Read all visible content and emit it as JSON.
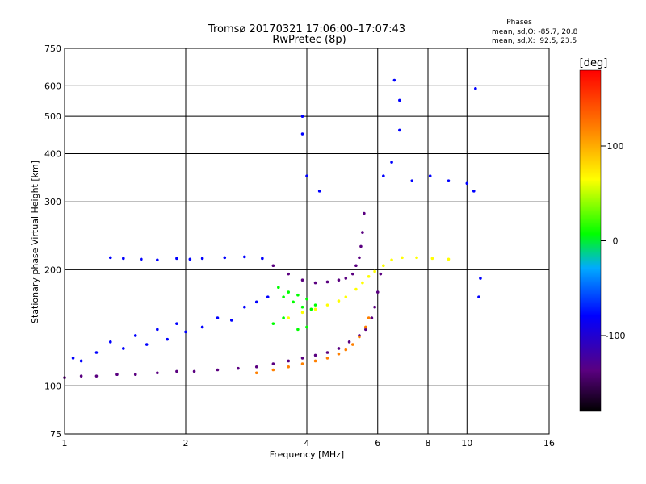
{
  "chart_data": {
    "type": "scatter",
    "title": "Tromsø 20170321 17:06:00–17:07:43",
    "subtitle": "RwPretec (8p)",
    "xlabel": "Frequency [MHz]",
    "ylabel": "Stationary phase Virtual Height [km]",
    "x_scale": "log",
    "y_scale": "log",
    "xlim": [
      1,
      16
    ],
    "ylim": [
      75,
      750
    ],
    "x_ticks": [
      1,
      2,
      4,
      6,
      8,
      10,
      16
    ],
    "y_ticks": [
      75,
      100,
      200,
      300,
      400,
      500,
      600,
      750
    ],
    "grid": true,
    "phase_info": {
      "header": "Phases",
      "line_o": "mean, sd,O: -85.7, 20.8",
      "line_x": "mean, sd,X:  92.5, 23.5"
    },
    "colorbar": {
      "label": "[deg]",
      "range": [
        -180,
        180
      ],
      "ticks": [
        100,
        0,
        -100
      ],
      "colors": [
        "#000000",
        "#5a0080",
        "#0000ff",
        "#00aaff",
        "#00ff00",
        "#ffff00",
        "#ff8000",
        "#ff0000"
      ]
    },
    "series": [
      {
        "trace": "O-mode lower trace",
        "phase_deg": -110,
        "points": [
          [
            1.0,
            105
          ],
          [
            1.1,
            106
          ],
          [
            1.2,
            106
          ],
          [
            1.35,
            107
          ],
          [
            1.5,
            107
          ],
          [
            1.7,
            108
          ],
          [
            1.9,
            109
          ],
          [
            2.1,
            109
          ],
          [
            2.4,
            110
          ],
          [
            2.7,
            111
          ],
          [
            3.0,
            112
          ],
          [
            3.3,
            114
          ],
          [
            3.6,
            116
          ],
          [
            3.9,
            118
          ],
          [
            4.2,
            120
          ],
          [
            4.5,
            122
          ],
          [
            4.8,
            125
          ],
          [
            5.1,
            130
          ],
          [
            5.4,
            135
          ],
          [
            5.6,
            140
          ],
          [
            5.8,
            150
          ],
          [
            5.9,
            160
          ],
          [
            6.0,
            175
          ],
          [
            6.1,
            195
          ]
        ]
      },
      {
        "trace": "F-region cusp near 5.5 MHz",
        "phase_deg": -110,
        "points": [
          [
            3.3,
            205
          ],
          [
            3.6,
            195
          ],
          [
            3.9,
            188
          ],
          [
            4.2,
            185
          ],
          [
            4.5,
            186
          ],
          [
            4.8,
            188
          ],
          [
            5.0,
            190
          ],
          [
            5.2,
            195
          ],
          [
            5.3,
            205
          ],
          [
            5.4,
            215
          ],
          [
            5.45,
            230
          ],
          [
            5.5,
            250
          ],
          [
            5.55,
            280
          ]
        ]
      },
      {
        "trace": "F-layer spread echoes",
        "phase_deg": -100,
        "points": [
          [
            1.3,
            215
          ],
          [
            1.4,
            214
          ],
          [
            1.55,
            213
          ],
          [
            1.7,
            212
          ],
          [
            1.9,
            214
          ],
          [
            2.05,
            213
          ],
          [
            2.2,
            214
          ],
          [
            2.5,
            215
          ],
          [
            2.8,
            216
          ],
          [
            3.1,
            214
          ]
        ]
      },
      {
        "trace": "X-mode lower trace",
        "phase_deg": 130,
        "points": [
          [
            3.0,
            108
          ],
          [
            3.3,
            110
          ],
          [
            3.6,
            112
          ],
          [
            3.9,
            114
          ],
          [
            4.2,
            116
          ],
          [
            4.5,
            118
          ],
          [
            4.8,
            121
          ],
          [
            5.0,
            124
          ],
          [
            5.2,
            128
          ],
          [
            5.4,
            134
          ],
          [
            5.6,
            142
          ],
          [
            5.7,
            150
          ]
        ]
      },
      {
        "trace": "X-mode upper trace",
        "phase_deg": 80,
        "points": [
          [
            3.6,
            150
          ],
          [
            3.9,
            155
          ],
          [
            4.2,
            158
          ],
          [
            4.5,
            162
          ],
          [
            4.8,
            166
          ],
          [
            5.0,
            170
          ],
          [
            5.3,
            178
          ],
          [
            5.5,
            185
          ],
          [
            5.7,
            192
          ],
          [
            5.9,
            198
          ],
          [
            6.2,
            205
          ],
          [
            6.5,
            212
          ],
          [
            6.9,
            215
          ],
          [
            7.5,
            215
          ],
          [
            8.2,
            214
          ],
          [
            9.0,
            213
          ]
        ]
      },
      {
        "trace": "Mixed-phase echoes 3-4 MHz",
        "phase_deg": 40,
        "points": [
          [
            3.4,
            180
          ],
          [
            3.5,
            170
          ],
          [
            3.6,
            175
          ],
          [
            3.7,
            165
          ],
          [
            3.8,
            172
          ],
          [
            3.9,
            160
          ],
          [
            4.0,
            168
          ],
          [
            4.1,
            158
          ],
          [
            4.2,
            162
          ],
          [
            3.3,
            145
          ],
          [
            3.5,
            150
          ],
          [
            3.8,
            140
          ],
          [
            4.0,
            142
          ]
        ]
      },
      {
        "trace": "Scattered low-frequency echoes",
        "phase_deg": -90,
        "points": [
          [
            1.05,
            118
          ],
          [
            1.1,
            116
          ],
          [
            1.2,
            122
          ],
          [
            1.3,
            130
          ],
          [
            1.4,
            125
          ],
          [
            1.5,
            135
          ],
          [
            1.6,
            128
          ],
          [
            1.7,
            140
          ],
          [
            1.8,
            132
          ],
          [
            1.9,
            145
          ],
          [
            2.0,
            138
          ],
          [
            2.2,
            142
          ],
          [
            2.4,
            150
          ],
          [
            2.6,
            148
          ],
          [
            2.8,
            160
          ],
          [
            3.0,
            165
          ],
          [
            3.2,
            170
          ]
        ]
      },
      {
        "trace": "Isolated high-frequency echoes",
        "phase_deg": -100,
        "points": [
          [
            4.0,
            350
          ],
          [
            4.3,
            320
          ],
          [
            6.2,
            350
          ],
          [
            6.5,
            380
          ],
          [
            6.8,
            460
          ],
          [
            7.3,
            340
          ],
          [
            8.1,
            350
          ],
          [
            9.0,
            340
          ],
          [
            10.0,
            335
          ],
          [
            10.4,
            320
          ],
          [
            6.6,
            620
          ],
          [
            6.8,
            550
          ],
          [
            3.9,
            500
          ],
          [
            3.9,
            450
          ],
          [
            10.5,
            590
          ],
          [
            10.8,
            190
          ],
          [
            10.7,
            170
          ]
        ]
      }
    ]
  }
}
